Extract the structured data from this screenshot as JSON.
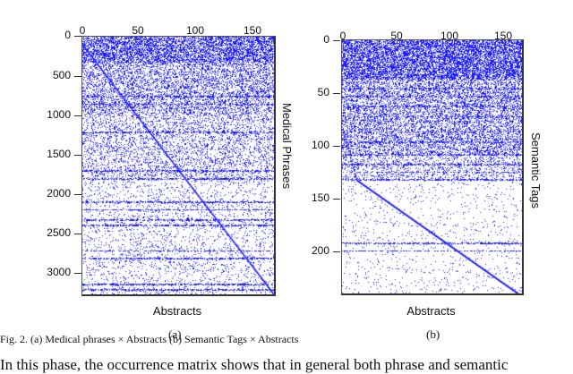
{
  "figure": {
    "caption": "Fig. 2.  (a) Medical phrases × Abstracts (b) Semantic Tags × Abstracts",
    "body_text_partial": "In this phase, the occurrence matrix shows that in general both phrase and semantic",
    "colors": {
      "dots": "#1a1aff",
      "axis": "#333333",
      "background": "#ffffff"
    }
  },
  "chart_data": [
    {
      "type": "heatmap",
      "subtitle": "(a)",
      "title": "Medical phrases × Abstracts",
      "xlabel": "Abstracts",
      "ylabel": "Medical Phrases",
      "xticks": [
        "0",
        "50",
        "100",
        "150"
      ],
      "yticks": [
        "0",
        "500",
        "1000",
        "1500",
        "2000",
        "2500",
        "3000"
      ],
      "xlim": [
        0,
        168
      ],
      "ylim": [
        0,
        3250
      ],
      "description": "Sparse binary occurrence matrix; dense at top rows, diagonal band from (0,0) to (168,3250), horizontal dense stripes near 750, 1200, 1800, 2200, 2300, 2700, 2800, 3150, 3200"
    },
    {
      "type": "heatmap",
      "subtitle": "(b)",
      "title": "Semantic Tags × Abstracts",
      "xlabel": "Abstracts",
      "ylabel": "Semantic Tags",
      "xticks": [
        "0",
        "50",
        "100",
        "150"
      ],
      "yticks": [
        "0",
        "50",
        "100",
        "150",
        "200"
      ],
      "xlim": [
        0,
        168
      ],
      "ylim": [
        0,
        240
      ],
      "description": "Sparse binary occurrence matrix; very dense top 130 rows, curved diagonal band from ~(10,120) to (160,240), horizontal stripes near 194 and 200"
    }
  ]
}
